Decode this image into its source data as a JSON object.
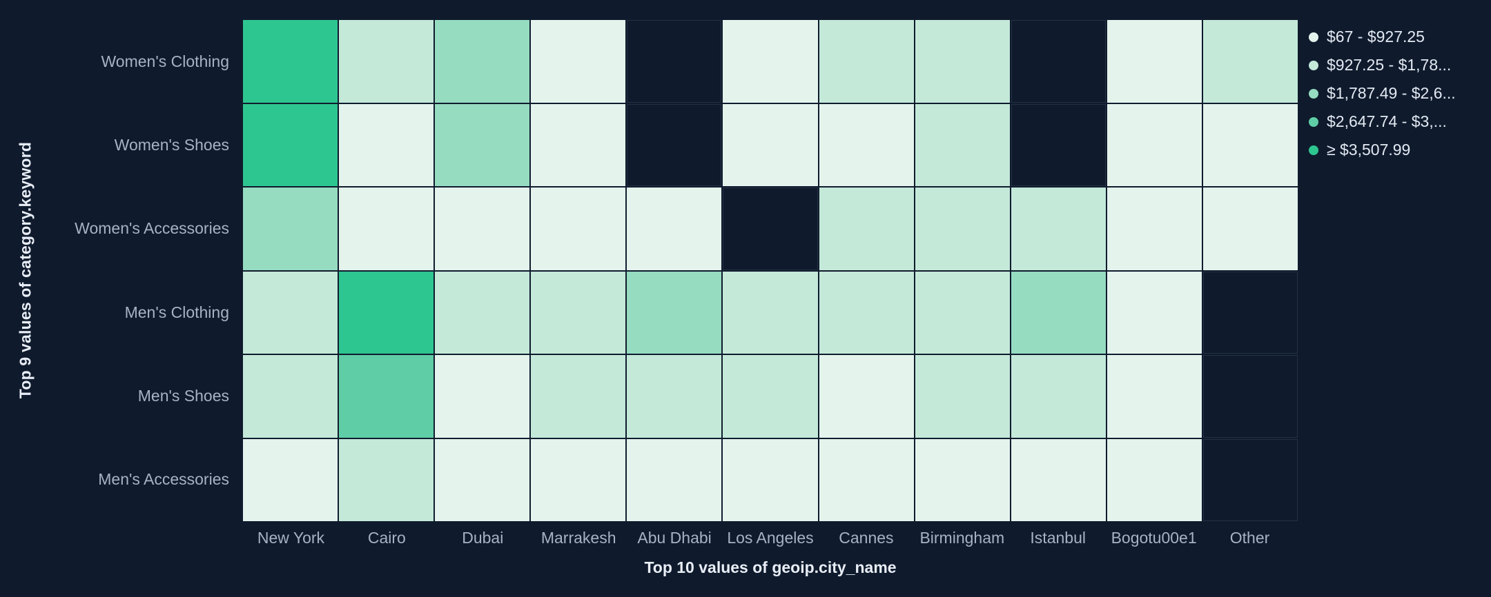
{
  "page": {
    "background": "#0f1b2d"
  },
  "chart_data": {
    "type": "heatmap",
    "title": "",
    "xlabel": "Top 10 values of geoip.city_name",
    "ylabel": "Top 9 values of category.keyword",
    "x_categories": [
      "New York",
      "Cairo",
      "Dubai",
      "Marrakesh",
      "Abu Dhabi",
      "Los Angeles",
      "Cannes",
      "Birmingham",
      "Istanbul",
      "Bogotu00e1",
      "Other"
    ],
    "y_categories": [
      "Women's Clothing",
      "Women's Shoes",
      "Women's Accessories",
      "Men's Clothing",
      "Men's Shoes",
      "Men's Accessories"
    ],
    "palette": [
      "#e4f4ed",
      "#c4e9d9",
      "#96dcc1",
      "#5fcda6",
      "#2ec690"
    ],
    "empty_color": "transparent",
    "legend": {
      "position": "right",
      "items": [
        {
          "label": "$67 - $927.25",
          "band": 1
        },
        {
          "label": "$927.25 - $1,78...",
          "band": 2
        },
        {
          "label": "$1,787.49 - $2,6...",
          "band": 3
        },
        {
          "label": "$2,647.74 - $3,...",
          "band": 4
        },
        {
          "label": "≥ $3,507.99",
          "band": 5
        }
      ]
    },
    "cells_note": "band index 1-5 into palette, 0 = no data (empty cell)",
    "cells": [
      [
        5,
        2,
        3,
        1,
        0,
        1,
        2,
        2,
        0,
        1,
        2
      ],
      [
        5,
        1,
        3,
        1,
        0,
        1,
        1,
        2,
        0,
        1,
        1
      ],
      [
        3,
        1,
        1,
        1,
        1,
        0,
        2,
        2,
        2,
        1,
        1
      ],
      [
        2,
        5,
        2,
        2,
        3,
        2,
        2,
        2,
        3,
        1,
        0
      ],
      [
        2,
        4,
        1,
        2,
        2,
        2,
        1,
        2,
        2,
        1,
        0
      ],
      [
        1,
        2,
        1,
        1,
        1,
        1,
        1,
        1,
        1,
        1,
        0
      ]
    ]
  }
}
